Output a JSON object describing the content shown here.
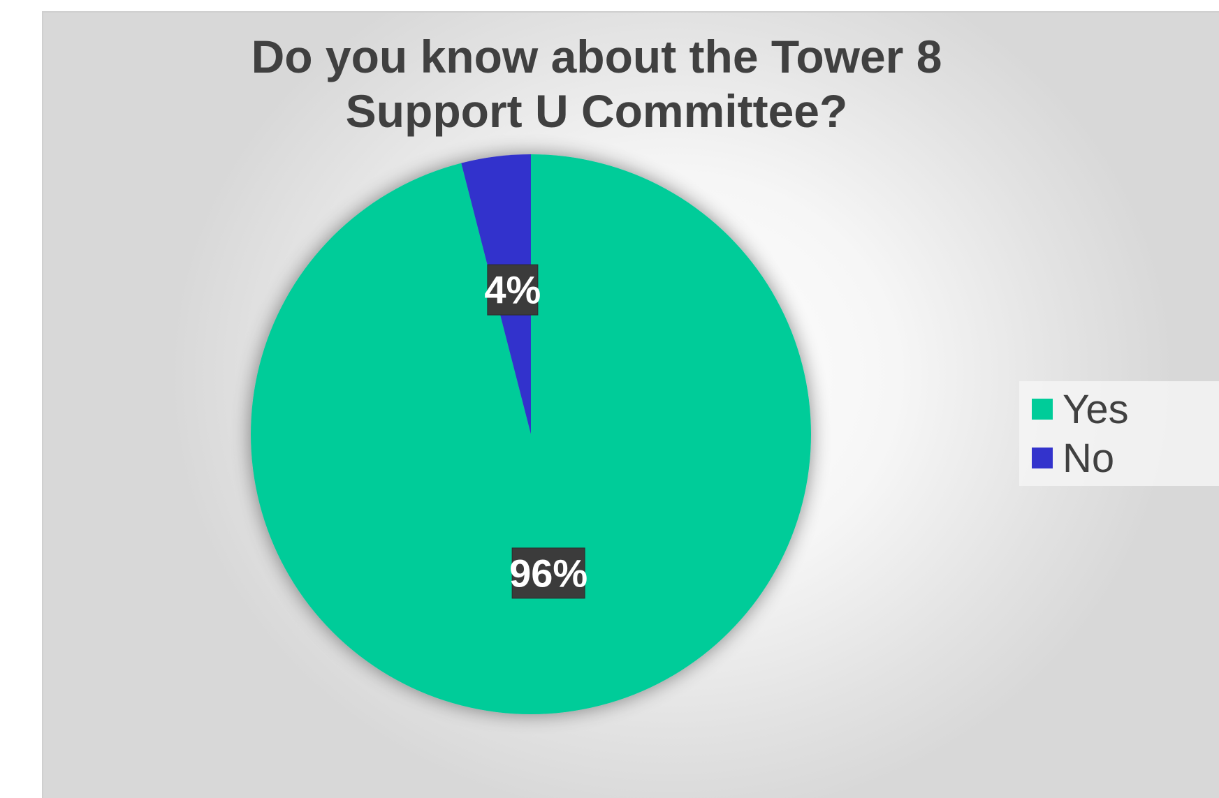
{
  "chart_data": {
    "type": "pie",
    "title": "Do you know about the Tower 8\nSupport U Committee?",
    "categories": [
      "Yes",
      "No"
    ],
    "values": [
      96,
      4
    ],
    "data_labels": [
      "96%",
      "4%"
    ],
    "colors": {
      "Yes": "#00CC99",
      "No": "#3333CC"
    },
    "legend_position": "right",
    "start_angle_deg": 0,
    "direction": "clockwise"
  }
}
